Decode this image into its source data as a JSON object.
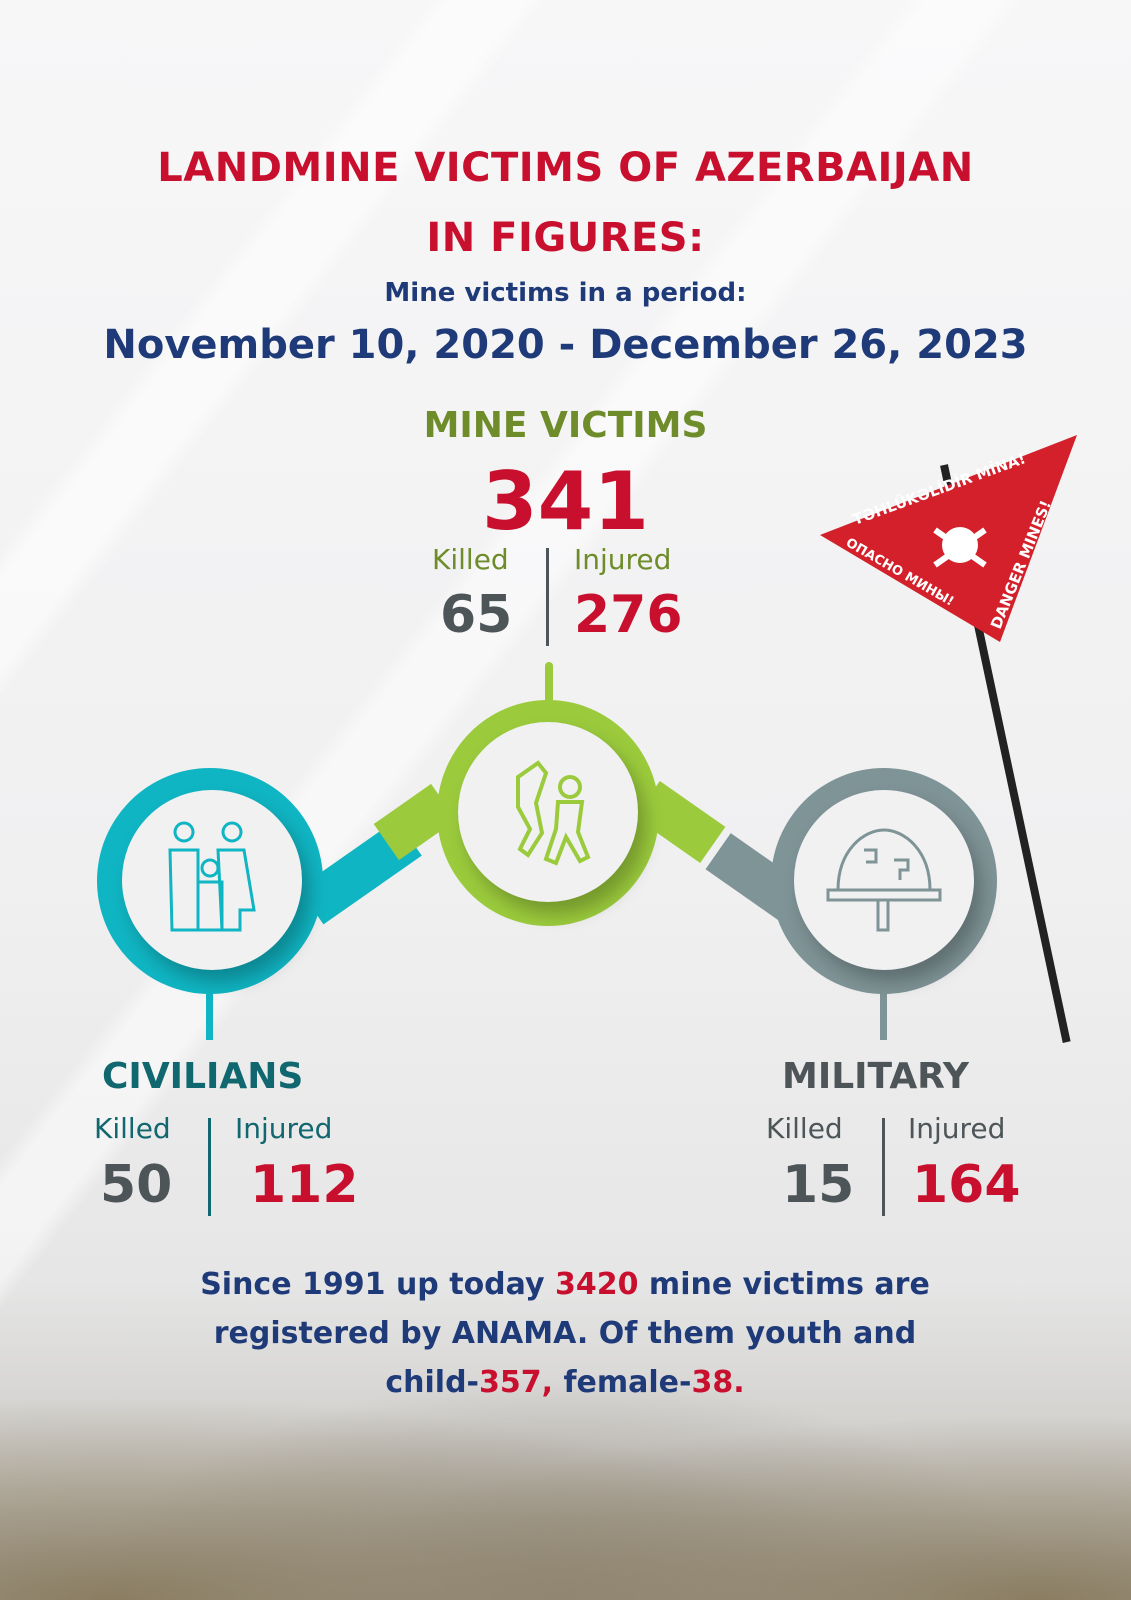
{
  "header": {
    "title_line1": "LANDMINE VICTIMS OF AZERBAIJAN",
    "title_line2": "IN FIGURES:",
    "subtitle": "Mine victims in a period:",
    "period": "November 10, 2020 - December 26, 2023"
  },
  "total": {
    "label": "MINE VICTIMS",
    "value": "341",
    "killed_label": "Killed",
    "killed": "65",
    "injured_label": "Injured",
    "injured": "276"
  },
  "civilians": {
    "label": "CIVILIANS",
    "killed_label": "Killed",
    "killed": "50",
    "injured_label": "Injured",
    "injured": "112",
    "icon": "family-icon"
  },
  "military": {
    "label": "MILITARY",
    "killed_label": "Killed",
    "killed": "15",
    "injured_label": "Injured",
    "injured": "164",
    "icon": "helmet-icon"
  },
  "center_icon": "explosion-victims-icon",
  "sign": {
    "line1": "TƏHLÜKƏLİDİR MİNA!",
    "line2": "ОПАСНО МИНЫ!",
    "line3": "DANGER MINES!"
  },
  "footer": {
    "p1": "Since 1991 up today ",
    "n1": "3420",
    "p2": " mine victims are registered by ANAMA. Of them youth and child-",
    "n2": "357,",
    "p3": " female-",
    "n3": "38."
  },
  "colors": {
    "red": "#c8102e",
    "navy": "#1e3a78",
    "olive": "#6e8c2a",
    "teal": "#10b5c3",
    "lime": "#9bcb3c",
    "gray": "#7f9497",
    "dark": "#4d5558"
  }
}
